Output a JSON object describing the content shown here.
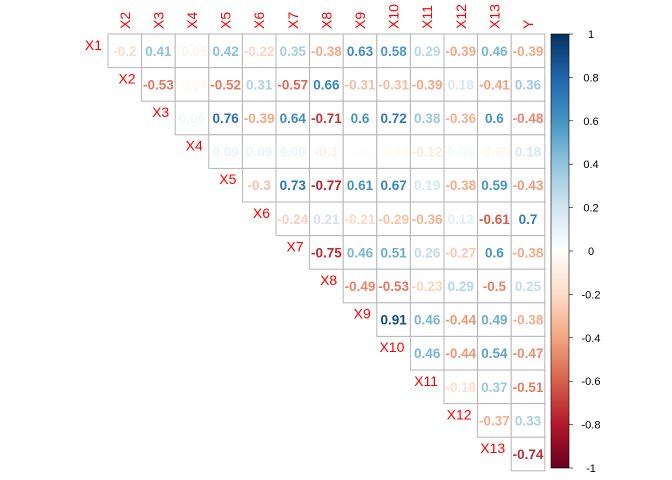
{
  "chart_data": {
    "type": "heatmap",
    "variables": [
      "X1",
      "X2",
      "X3",
      "X4",
      "X5",
      "X6",
      "X7",
      "X8",
      "X9",
      "X10",
      "X11",
      "X12",
      "X13",
      "Y"
    ],
    "column_labels": [
      "X2",
      "X3",
      "X4",
      "X5",
      "X6",
      "X7",
      "X8",
      "X9",
      "X10",
      "X11",
      "X12",
      "X13",
      "Y"
    ],
    "row_labels": [
      "X1",
      "X2",
      "X3",
      "X4",
      "X5",
      "X6",
      "X7",
      "X8",
      "X9",
      "X10",
      "X11",
      "X12",
      "X13"
    ],
    "cells": [
      {
        "row": "X1",
        "col": "X2",
        "value": -0.2,
        "label": "-0.2"
      },
      {
        "row": "X1",
        "col": "X3",
        "value": 0.41,
        "label": "0.41"
      },
      {
        "row": "X1",
        "col": "X4",
        "value": -0.06,
        "label": "-0.06"
      },
      {
        "row": "X1",
        "col": "X5",
        "value": 0.42,
        "label": "0.42"
      },
      {
        "row": "X1",
        "col": "X6",
        "value": -0.22,
        "label": "-0.22"
      },
      {
        "row": "X1",
        "col": "X7",
        "value": 0.35,
        "label": "0.35"
      },
      {
        "row": "X1",
        "col": "X8",
        "value": -0.38,
        "label": "-0.38"
      },
      {
        "row": "X1",
        "col": "X9",
        "value": 0.63,
        "label": "0.63"
      },
      {
        "row": "X1",
        "col": "X10",
        "value": 0.58,
        "label": "0.58"
      },
      {
        "row": "X1",
        "col": "X11",
        "value": 0.29,
        "label": "0.29"
      },
      {
        "row": "X1",
        "col": "X12",
        "value": -0.39,
        "label": "-0.39"
      },
      {
        "row": "X1",
        "col": "X13",
        "value": 0.46,
        "label": "0.46"
      },
      {
        "row": "X1",
        "col": "Y",
        "value": -0.39,
        "label": "-0.39"
      },
      {
        "row": "X2",
        "col": "X3",
        "value": -0.53,
        "label": "-0.53"
      },
      {
        "row": "X2",
        "col": "X4",
        "value": -0.04,
        "label": "-0.04"
      },
      {
        "row": "X2",
        "col": "X5",
        "value": -0.52,
        "label": "-0.52"
      },
      {
        "row": "X2",
        "col": "X6",
        "value": 0.31,
        "label": "0.31"
      },
      {
        "row": "X2",
        "col": "X7",
        "value": -0.57,
        "label": "-0.57"
      },
      {
        "row": "X2",
        "col": "X8",
        "value": 0.66,
        "label": "0.66"
      },
      {
        "row": "X2",
        "col": "X9",
        "value": -0.31,
        "label": "-0.31"
      },
      {
        "row": "X2",
        "col": "X10",
        "value": -0.31,
        "label": "-0.31"
      },
      {
        "row": "X2",
        "col": "X11",
        "value": -0.39,
        "label": "-0.39"
      },
      {
        "row": "X2",
        "col": "X12",
        "value": 0.18,
        "label": "0.18"
      },
      {
        "row": "X2",
        "col": "X13",
        "value": -0.41,
        "label": "-0.41"
      },
      {
        "row": "X2",
        "col": "Y",
        "value": 0.36,
        "label": "0.36"
      },
      {
        "row": "X3",
        "col": "X4",
        "value": 0.06,
        "label": "0.06"
      },
      {
        "row": "X3",
        "col": "X5",
        "value": 0.76,
        "label": "0.76"
      },
      {
        "row": "X3",
        "col": "X6",
        "value": -0.39,
        "label": "-0.39"
      },
      {
        "row": "X3",
        "col": "X7",
        "value": 0.64,
        "label": "0.64"
      },
      {
        "row": "X3",
        "col": "X8",
        "value": -0.71,
        "label": "-0.71"
      },
      {
        "row": "X3",
        "col": "X9",
        "value": 0.6,
        "label": "0.6"
      },
      {
        "row": "X3",
        "col": "X10",
        "value": 0.72,
        "label": "0.72"
      },
      {
        "row": "X3",
        "col": "X11",
        "value": 0.38,
        "label": "0.38"
      },
      {
        "row": "X3",
        "col": "X12",
        "value": -0.36,
        "label": "-0.36"
      },
      {
        "row": "X3",
        "col": "X13",
        "value": 0.6,
        "label": "0.6"
      },
      {
        "row": "X3",
        "col": "Y",
        "value": -0.48,
        "label": "-0.48"
      },
      {
        "row": "X4",
        "col": "X5",
        "value": 0.09,
        "label": "0.09"
      },
      {
        "row": "X4",
        "col": "X6",
        "value": 0.09,
        "label": "0.09"
      },
      {
        "row": "X4",
        "col": "X7",
        "value": 0.09,
        "label": "0.09"
      },
      {
        "row": "X4",
        "col": "X8",
        "value": -0.1,
        "label": "-0.1"
      },
      {
        "row": "X4",
        "col": "X9",
        "value": -0.01,
        "label": "-0.01"
      },
      {
        "row": "X4",
        "col": "X10",
        "value": -0.04,
        "label": "-0.04"
      },
      {
        "row": "X4",
        "col": "X11",
        "value": -0.12,
        "label": "-0.12"
      },
      {
        "row": "X4",
        "col": "X12",
        "value": 0.05,
        "label": "0.05"
      },
      {
        "row": "X4",
        "col": "X13",
        "value": -0.05,
        "label": "-0.05"
      },
      {
        "row": "X4",
        "col": "Y",
        "value": 0.18,
        "label": "0.18"
      },
      {
        "row": "X5",
        "col": "X6",
        "value": -0.3,
        "label": "-0.3"
      },
      {
        "row": "X5",
        "col": "X7",
        "value": 0.73,
        "label": "0.73"
      },
      {
        "row": "X5",
        "col": "X8",
        "value": -0.77,
        "label": "-0.77"
      },
      {
        "row": "X5",
        "col": "X9",
        "value": 0.61,
        "label": "0.61"
      },
      {
        "row": "X5",
        "col": "X10",
        "value": 0.67,
        "label": "0.67"
      },
      {
        "row": "X5",
        "col": "X11",
        "value": 0.19,
        "label": "0.19"
      },
      {
        "row": "X5",
        "col": "X12",
        "value": -0.38,
        "label": "-0.38"
      },
      {
        "row": "X5",
        "col": "X13",
        "value": 0.59,
        "label": "0.59"
      },
      {
        "row": "X5",
        "col": "Y",
        "value": -0.43,
        "label": "-0.43"
      },
      {
        "row": "X6",
        "col": "X7",
        "value": -0.24,
        "label": "-0.24"
      },
      {
        "row": "X6",
        "col": "X8",
        "value": 0.21,
        "label": "0.21"
      },
      {
        "row": "X6",
        "col": "X9",
        "value": -0.21,
        "label": "-0.21"
      },
      {
        "row": "X6",
        "col": "X10",
        "value": -0.29,
        "label": "-0.29"
      },
      {
        "row": "X6",
        "col": "X11",
        "value": -0.36,
        "label": "-0.36"
      },
      {
        "row": "X6",
        "col": "X12",
        "value": 0.13,
        "label": "0.13"
      },
      {
        "row": "X6",
        "col": "X13",
        "value": -0.61,
        "label": "-0.61"
      },
      {
        "row": "X6",
        "col": "Y",
        "value": 0.7,
        "label": "0.7"
      },
      {
        "row": "X7",
        "col": "X8",
        "value": -0.75,
        "label": "-0.75"
      },
      {
        "row": "X7",
        "col": "X9",
        "value": 0.46,
        "label": "0.46"
      },
      {
        "row": "X7",
        "col": "X10",
        "value": 0.51,
        "label": "0.51"
      },
      {
        "row": "X7",
        "col": "X11",
        "value": 0.26,
        "label": "0.26"
      },
      {
        "row": "X7",
        "col": "X12",
        "value": -0.27,
        "label": "-0.27"
      },
      {
        "row": "X7",
        "col": "X13",
        "value": 0.6,
        "label": "0.6"
      },
      {
        "row": "X7",
        "col": "Y",
        "value": -0.38,
        "label": "-0.38"
      },
      {
        "row": "X8",
        "col": "X9",
        "value": -0.49,
        "label": "-0.49"
      },
      {
        "row": "X8",
        "col": "X10",
        "value": -0.53,
        "label": "-0.53"
      },
      {
        "row": "X8",
        "col": "X11",
        "value": -0.23,
        "label": "-0.23"
      },
      {
        "row": "X8",
        "col": "X12",
        "value": 0.29,
        "label": "0.29"
      },
      {
        "row": "X8",
        "col": "X13",
        "value": -0.5,
        "label": "-0.5"
      },
      {
        "row": "X8",
        "col": "Y",
        "value": 0.25,
        "label": "0.25"
      },
      {
        "row": "X9",
        "col": "X10",
        "value": 0.91,
        "label": "0.91"
      },
      {
        "row": "X9",
        "col": "X11",
        "value": 0.46,
        "label": "0.46"
      },
      {
        "row": "X9",
        "col": "X12",
        "value": -0.44,
        "label": "-0.44"
      },
      {
        "row": "X9",
        "col": "X13",
        "value": 0.49,
        "label": "0.49"
      },
      {
        "row": "X9",
        "col": "Y",
        "value": -0.38,
        "label": "-0.38"
      },
      {
        "row": "X10",
        "col": "X11",
        "value": 0.46,
        "label": "0.46"
      },
      {
        "row": "X10",
        "col": "X12",
        "value": -0.44,
        "label": "-0.44"
      },
      {
        "row": "X10",
        "col": "X13",
        "value": 0.54,
        "label": "0.54"
      },
      {
        "row": "X10",
        "col": "Y",
        "value": -0.47,
        "label": "-0.47"
      },
      {
        "row": "X11",
        "col": "X12",
        "value": -0.18,
        "label": "-0.18"
      },
      {
        "row": "X11",
        "col": "X13",
        "value": 0.37,
        "label": "0.37"
      },
      {
        "row": "X11",
        "col": "Y",
        "value": -0.51,
        "label": "-0.51"
      },
      {
        "row": "X12",
        "col": "X13",
        "value": -0.37,
        "label": "-0.37"
      },
      {
        "row": "X12",
        "col": "Y",
        "value": 0.33,
        "label": "0.33"
      },
      {
        "row": "X13",
        "col": "Y",
        "value": -0.74,
        "label": "-0.74"
      }
    ],
    "colorbar": {
      "range": [
        -1,
        1
      ],
      "ticks": [
        1,
        0.8,
        0.6,
        0.4,
        0.2,
        0,
        -0.2,
        -0.4,
        -0.6,
        -0.8,
        -1
      ],
      "tick_labels": [
        "1",
        "0.8",
        "0.6",
        "0.4",
        "0.2",
        "0",
        "-0.2",
        "-0.4",
        "-0.6",
        "-0.8",
        "-1"
      ],
      "palette": [
        "#67001F",
        "#B2182B",
        "#D6604D",
        "#F4A582",
        "#FDDBC7",
        "#FFFFFF",
        "#D1E5F0",
        "#92C5DE",
        "#4393C3",
        "#2166AC",
        "#053061"
      ]
    },
    "label_color": "#FF0000",
    "title": "",
    "xlabel": "",
    "ylabel": ""
  }
}
